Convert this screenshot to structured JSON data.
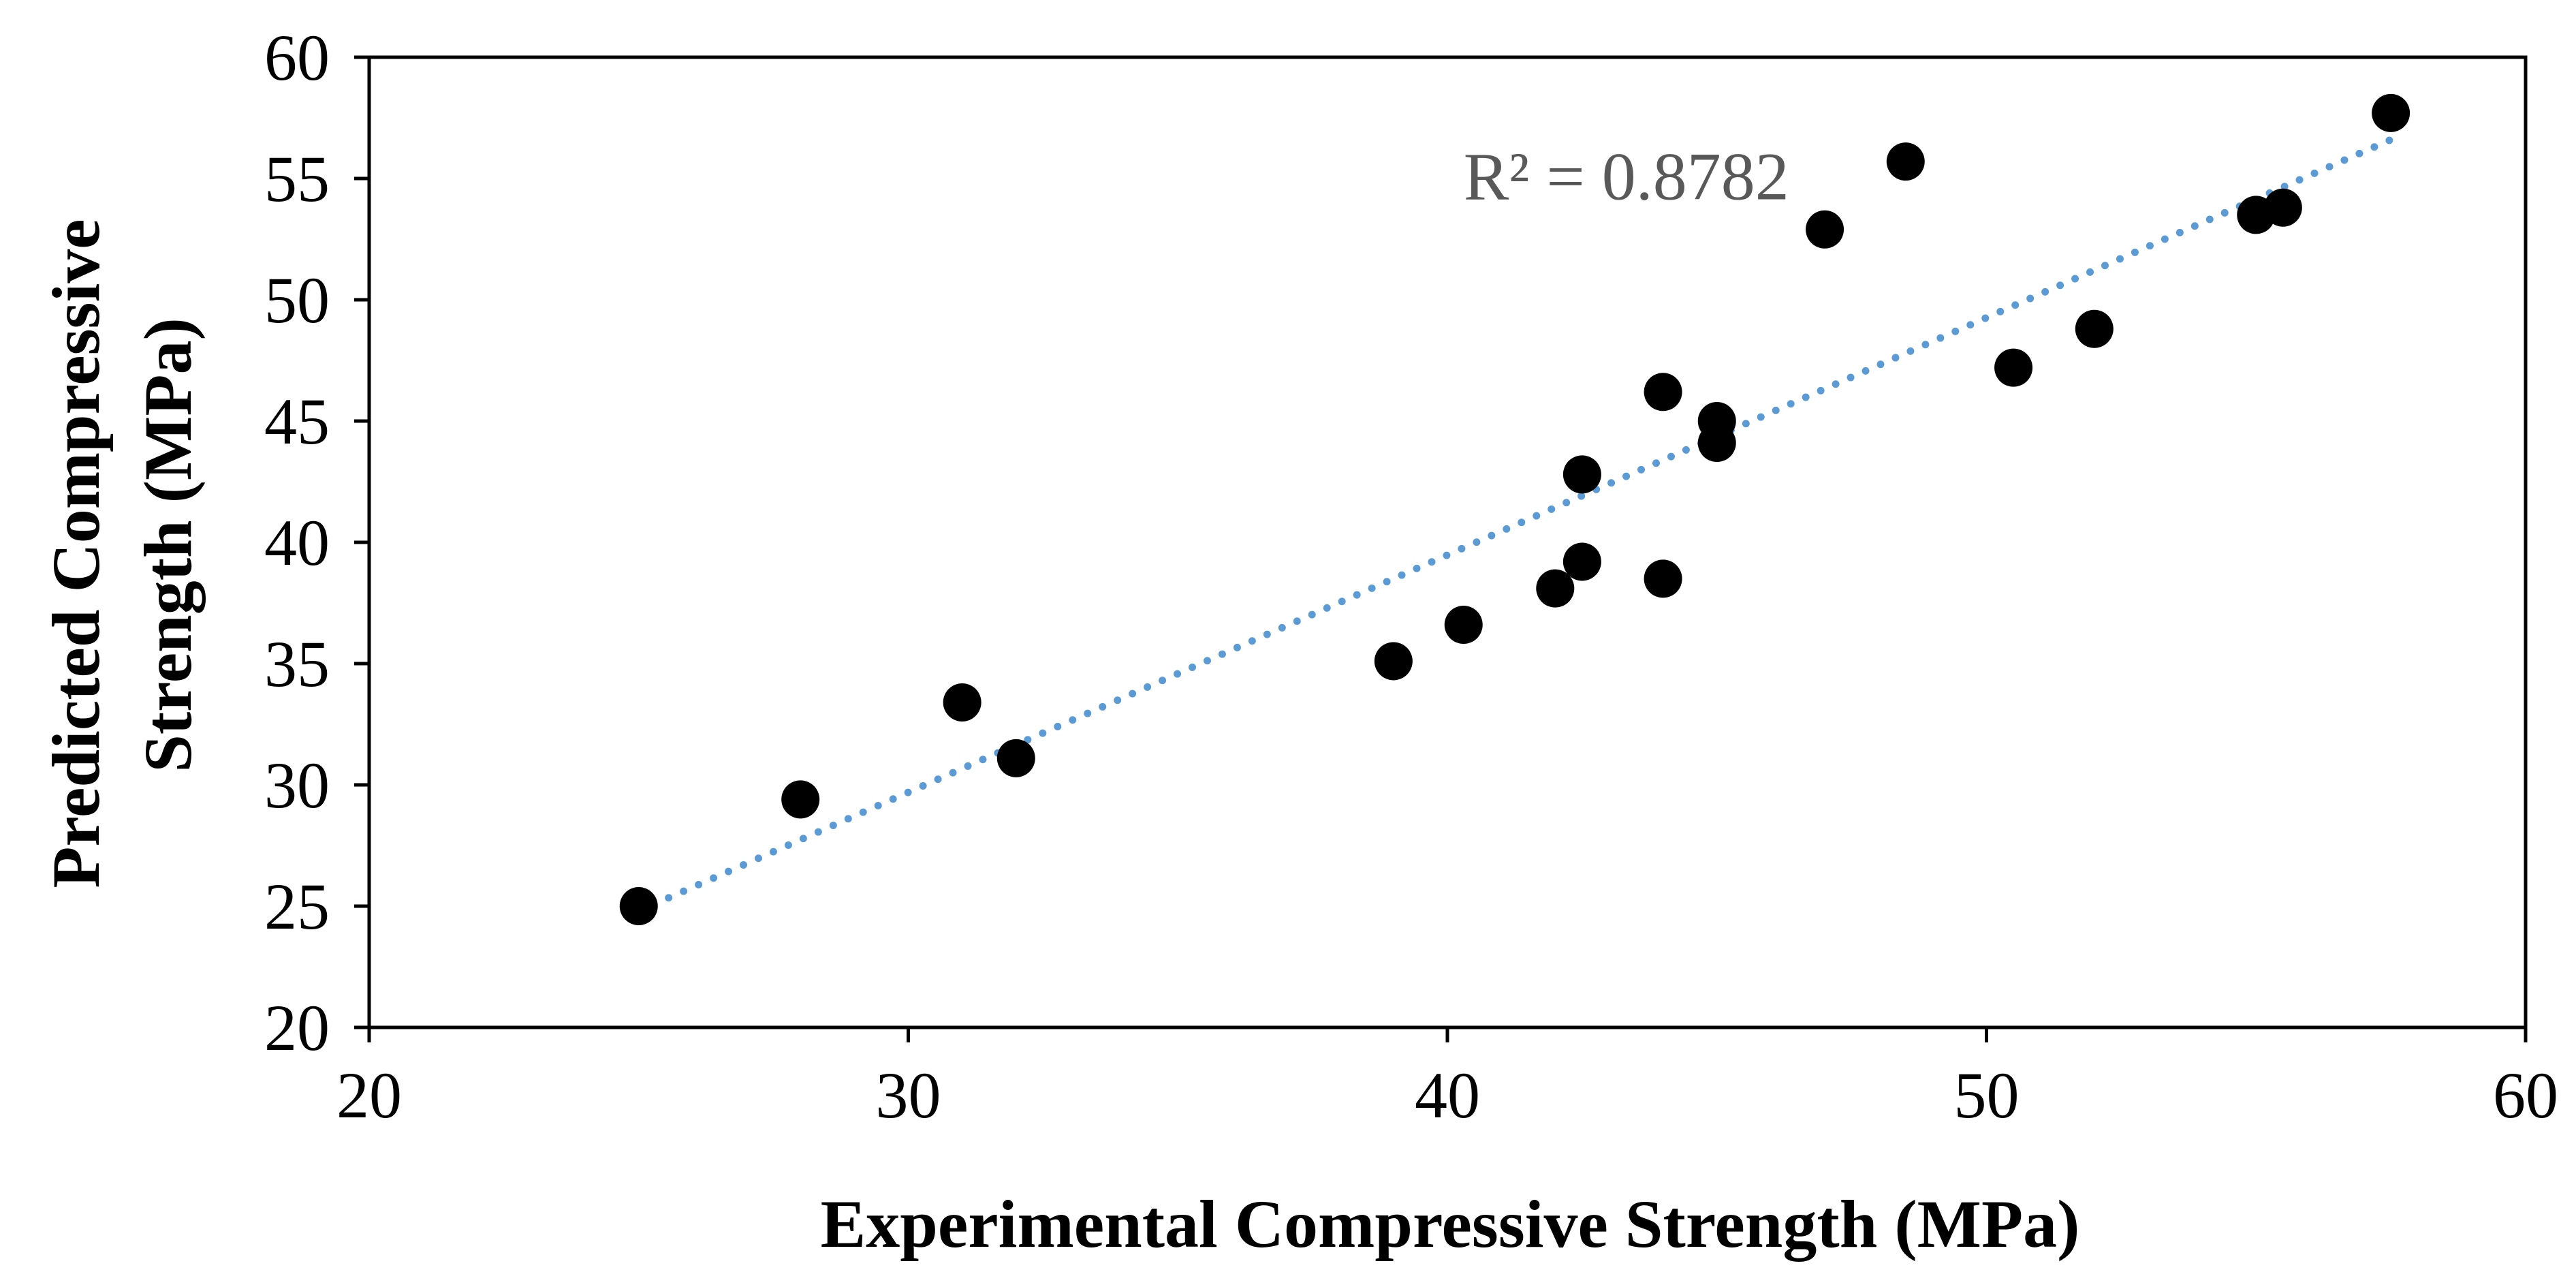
{
  "chart_data": {
    "type": "scatter",
    "title": "",
    "xlabel": "Experimental Compressive Strength (MPa)",
    "ylabel_lines": [
      "Predicted Compressive",
      "Strength (MPa)"
    ],
    "xlim": [
      20,
      60
    ],
    "ylim": [
      20,
      60
    ],
    "x_ticks": [
      20,
      30,
      40,
      50,
      60
    ],
    "y_ticks": [
      20,
      25,
      30,
      35,
      40,
      45,
      50,
      55,
      60
    ],
    "grid": false,
    "legend": "none",
    "series": [
      {
        "name": "data",
        "marker": "circle",
        "color": "#000000",
        "points": [
          {
            "x": 25.0,
            "y": 25.0
          },
          {
            "x": 28.0,
            "y": 29.4
          },
          {
            "x": 31.0,
            "y": 33.4
          },
          {
            "x": 32.0,
            "y": 31.1
          },
          {
            "x": 39.0,
            "y": 35.1
          },
          {
            "x": 40.3,
            "y": 36.6
          },
          {
            "x": 42.0,
            "y": 38.1
          },
          {
            "x": 42.5,
            "y": 39.2
          },
          {
            "x": 42.5,
            "y": 42.8
          },
          {
            "x": 44.0,
            "y": 38.5
          },
          {
            "x": 44.0,
            "y": 46.2
          },
          {
            "x": 45.0,
            "y": 44.1
          },
          {
            "x": 45.0,
            "y": 45.0
          },
          {
            "x": 47.0,
            "y": 52.9
          },
          {
            "x": 48.5,
            "y": 55.7
          },
          {
            "x": 50.5,
            "y": 47.2
          },
          {
            "x": 52.0,
            "y": 48.8
          },
          {
            "x": 55.0,
            "y": 53.5
          },
          {
            "x": 55.5,
            "y": 53.8
          },
          {
            "x": 57.5,
            "y": 57.7
          }
        ]
      }
    ],
    "trendline": {
      "type": "linear",
      "style": "dotted",
      "color": "#5B9BD5",
      "x_start": 25.0,
      "x_end": 57.5,
      "y_start": 24.8,
      "y_end": 56.6
    },
    "annotations": [
      {
        "text": "R² = 0.8782",
        "x": 40.3,
        "y": 55.1
      }
    ]
  }
}
